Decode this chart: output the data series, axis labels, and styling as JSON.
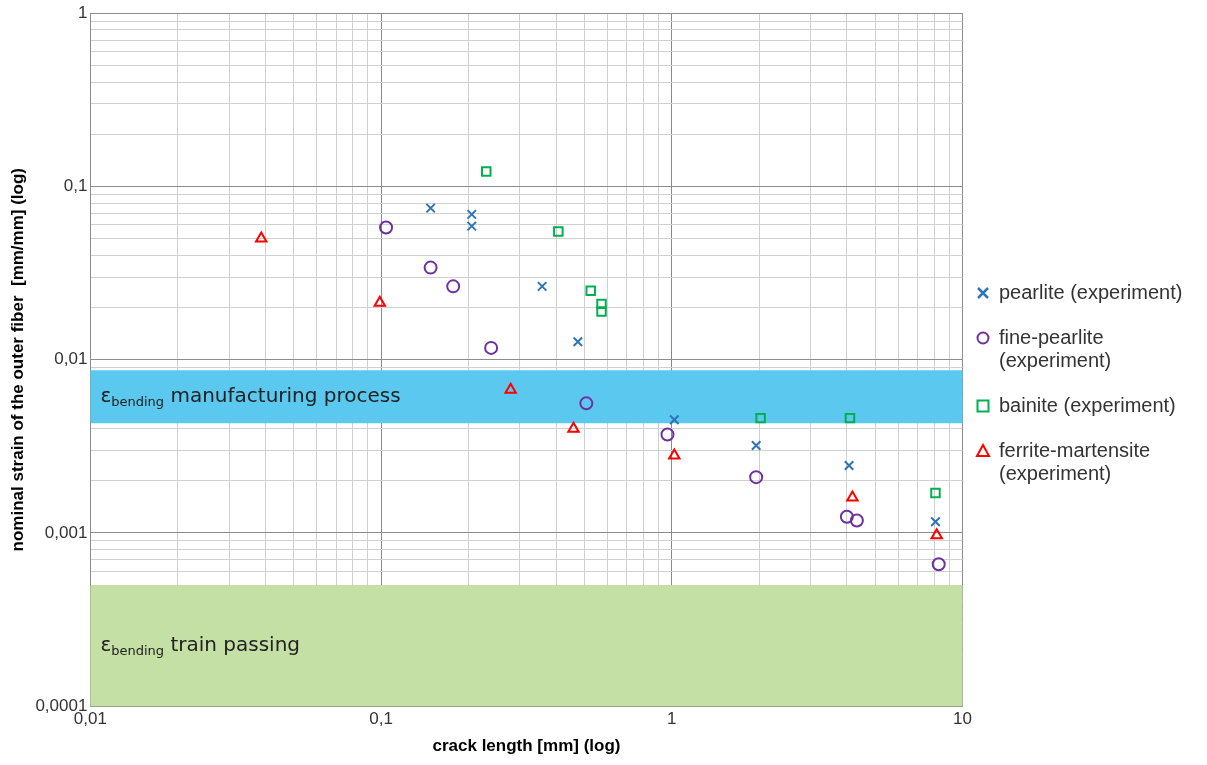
{
  "chart_data": {
    "type": "scatter",
    "xlabel": "crack length [mm] (log)",
    "ylabel": "nominal strain of the outer fiber  [mm/mm] (log)",
    "log": "xy",
    "grid": true,
    "legend": "right",
    "xlim": [
      0.01,
      10
    ],
    "ylim": [
      0.0001,
      1
    ],
    "xticks": [
      {
        "value": 0.01,
        "label": "0,01"
      },
      {
        "value": 0.02,
        "label": null
      },
      {
        "value": 0.03,
        "label": null
      },
      {
        "value": 0.04,
        "label": null
      },
      {
        "value": 0.05,
        "label": null
      },
      {
        "value": 0.06,
        "label": null
      },
      {
        "value": 0.07,
        "label": null
      },
      {
        "value": 0.08,
        "label": null
      },
      {
        "value": 0.09,
        "label": null
      },
      {
        "value": 0.1,
        "label": "0,1"
      },
      {
        "value": 0.2,
        "label": null
      },
      {
        "value": 0.3,
        "label": null
      },
      {
        "value": 0.4,
        "label": null
      },
      {
        "value": 0.5,
        "label": null
      },
      {
        "value": 0.6,
        "label": null
      },
      {
        "value": 0.7,
        "label": null
      },
      {
        "value": 0.8,
        "label": null
      },
      {
        "value": 0.9,
        "label": null
      },
      1,
      {
        "value": 2,
        "label": null
      },
      {
        "value": 3,
        "label": null
      },
      {
        "value": 4,
        "label": null
      },
      {
        "value": 5,
        "label": null
      },
      {
        "value": 6,
        "label": null
      },
      {
        "value": 7,
        "label": null
      },
      {
        "value": 8,
        "label": null
      },
      {
        "value": 9,
        "label": null
      },
      10
    ],
    "yticks": [
      {
        "value": 0.0001,
        "label": "0,0001"
      },
      {
        "value": 0.0002,
        "label": null
      },
      {
        "value": 0.0003,
        "label": null
      },
      {
        "value": 0.0004,
        "label": null
      },
      {
        "value": 0.0005,
        "label": null
      },
      {
        "value": 0.0006,
        "label": null
      },
      {
        "value": 0.0007,
        "label": null
      },
      {
        "value": 0.0008,
        "label": null
      },
      {
        "value": 0.0009,
        "label": null
      },
      {
        "value": 0.001,
        "label": "0,001"
      },
      {
        "value": 0.002,
        "label": null
      },
      {
        "value": 0.003,
        "label": null
      },
      {
        "value": 0.004,
        "label": null
      },
      {
        "value": 0.005,
        "label": null
      },
      {
        "value": 0.006,
        "label": null
      },
      {
        "value": 0.007,
        "label": null
      },
      {
        "value": 0.008,
        "label": null
      },
      {
        "value": 0.009,
        "label": null
      },
      {
        "value": 0.01,
        "label": "0,01"
      },
      {
        "value": 0.02,
        "label": null
      },
      {
        "value": 0.03,
        "label": null
      },
      {
        "value": 0.04,
        "label": null
      },
      {
        "value": 0.05,
        "label": null
      },
      {
        "value": 0.06,
        "label": null
      },
      {
        "value": 0.07,
        "label": null
      },
      {
        "value": 0.08,
        "label": null
      },
      {
        "value": 0.09,
        "label": null
      },
      {
        "value": 0.1,
        "label": "0,1"
      },
      {
        "value": 0.2,
        "label": null
      },
      {
        "value": 0.3,
        "label": null
      },
      {
        "value": 0.4,
        "label": null
      },
      {
        "value": 0.5,
        "label": null
      },
      {
        "value": 0.6,
        "label": null
      },
      {
        "value": 0.7,
        "label": null
      },
      {
        "value": 0.8,
        "label": null
      },
      {
        "value": 0.9,
        "label": null
      },
      1
    ],
    "bands": [
      {
        "axis": "y",
        "from": 0.0043,
        "to": 0.0087,
        "label": "ε$_{bending}$ manufacturing process",
        "color": "#5bc8ef"
      },
      {
        "axis": "y",
        "from": 0.0001,
        "to": 0.0005,
        "label": "ε$_{bending}$ train passing",
        "color": "#c5e0a5"
      }
    ],
    "series": [
      {
        "name": "pearlite (experiment)",
        "color": "#2e75b6",
        "marker": "cross",
        "x": [
          0.148,
          0.205,
          0.205,
          0.358,
          0.475,
          1.02,
          1.95,
          4.07,
          8.07
        ],
        "values": [
          0.075,
          0.069,
          0.059,
          0.0265,
          0.0127,
          0.0045,
          0.0032,
          0.00245,
          0.00116
        ]
      },
      {
        "name": "fine-pearlite (experiment)",
        "color": "#7030a0",
        "marker": "circle",
        "x": [
          0.104,
          0.148,
          0.177,
          0.239,
          0.508,
          0.966,
          1.95,
          4.0,
          4.33,
          8.28
        ],
        "values": [
          0.058,
          0.034,
          0.0265,
          0.0117,
          0.0056,
          0.0037,
          0.0021,
          0.00124,
          0.00118,
          0.00066
        ]
      },
      {
        "name": "bainite (experiment)",
        "color": "#00b050",
        "marker": "square",
        "x": [
          0.23,
          0.407,
          0.526,
          0.573,
          0.573,
          2.02,
          4.1,
          8.07
        ],
        "values": [
          0.122,
          0.055,
          0.025,
          0.021,
          0.019,
          0.0046,
          0.0046,
          0.0017
        ]
      },
      {
        "name": "ferrite-martensite (experiment)",
        "color": "#ff0000",
        "marker": "triangle",
        "x": [
          0.0387,
          0.099,
          0.279,
          0.459,
          1.02,
          4.18,
          8.15
        ],
        "values": [
          0.05,
          0.0213,
          0.0067,
          0.004,
          0.0028,
          0.0016,
          0.00097
        ]
      }
    ]
  }
}
